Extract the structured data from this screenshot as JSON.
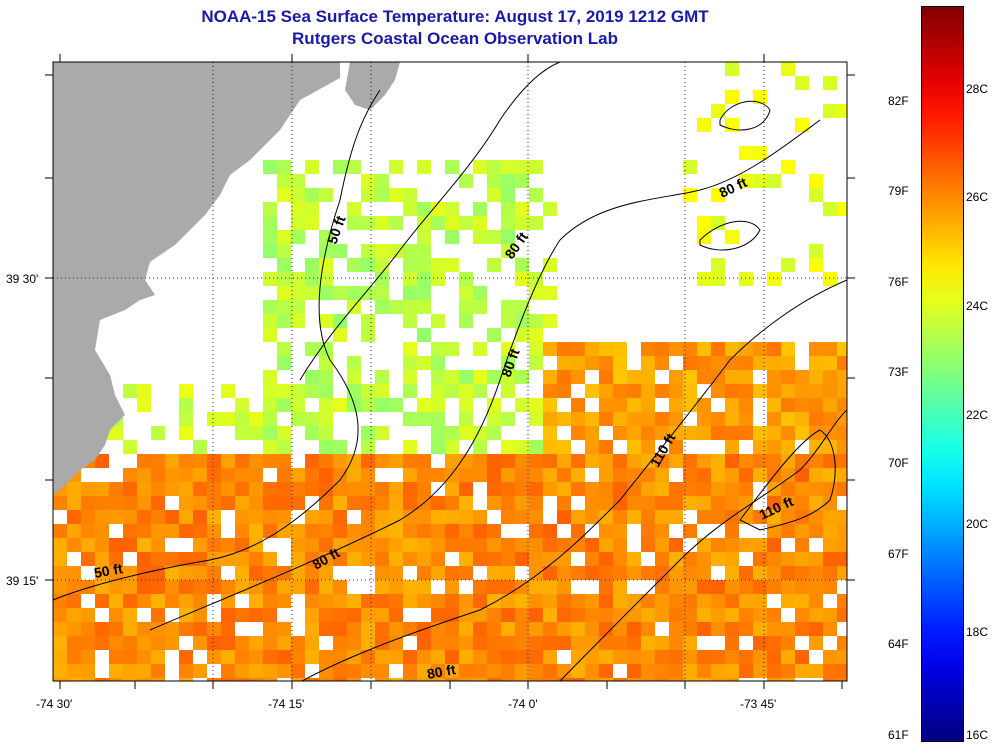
{
  "title": {
    "line1": "NOAA-15 Sea Surface Temperature:  August 17, 2019 1212 GMT",
    "line2": "Rutgers Coastal Ocean Observation Lab"
  },
  "axes": {
    "x_ticks": [
      {
        "label": "-74 30'",
        "lon": -74.5
      },
      {
        "label": "-74 15'",
        "lon": -74.25
      },
      {
        "label": "-74 0'",
        "lon": -74.0
      },
      {
        "label": "-73 45'",
        "lon": -73.75
      }
    ],
    "y_ticks": [
      {
        "label": "39 30'",
        "lat": 39.5
      },
      {
        "label": "39 15'",
        "lat": 39.25
      }
    ]
  },
  "contour_labels": [
    {
      "text": "50 ft",
      "key": "c50a"
    },
    {
      "text": "50 ft",
      "key": "c50b"
    },
    {
      "text": "80 ft",
      "key": "c80a"
    },
    {
      "text": "80 ft",
      "key": "c80b"
    },
    {
      "text": "80 ft",
      "key": "c80c"
    },
    {
      "text": "80 ft",
      "key": "c80d"
    },
    {
      "text": "80 ft",
      "key": "c80e"
    },
    {
      "text": "110 ft",
      "key": "c110a"
    },
    {
      "text": "110 ft",
      "key": "c110b"
    }
  ],
  "colorbar": {
    "celsius": [
      "28C",
      "26C",
      "24C",
      "22C",
      "20C",
      "18C",
      "16C"
    ],
    "fahrenheit": [
      "82F",
      "79F",
      "76F",
      "73F",
      "70F",
      "67F",
      "64F",
      "61F"
    ],
    "min_c": 16,
    "max_c": 29.5
  },
  "colors": {
    "land": "#aaaaaa",
    "title": "#1a1aa6"
  }
}
